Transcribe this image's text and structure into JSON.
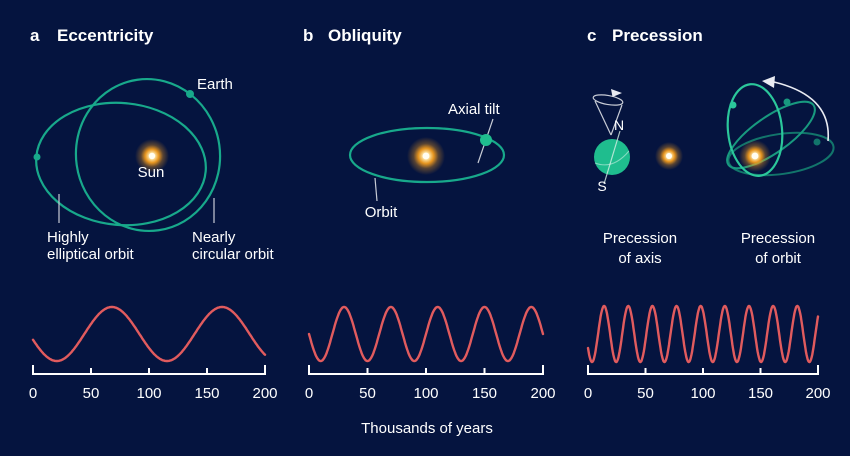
{
  "figure": {
    "palette": {
      "bg": "#05143f",
      "text": "#ffffff",
      "orbit": "#18a98b",
      "orbit-bright": "#2bc79b",
      "orbit-medium": "#18997f",
      "orbit-dark": "#12756b",
      "globe": "#1fbd8e",
      "wave": "#e15b5e",
      "leader": "#c8ccd6",
      "axis": "#ffffff",
      "sun-core": "#ffffff",
      "sun-mid": "#ffe9ad",
      "sun-outer": "#f29b1d"
    }
  },
  "panels": {
    "a": {
      "letter": "a",
      "title": "Eccentricity",
      "labels": {
        "earth": "Earth",
        "sun": "Sun",
        "highly_line1": "Highly",
        "highly_line2": "elliptical orbit",
        "nearly_line1": "Nearly",
        "nearly_line2": "circular orbit"
      }
    },
    "b": {
      "letter": "b",
      "title": "Obliquity",
      "labels": {
        "axial_tilt": "Axial tilt",
        "orbit": "Orbit"
      }
    },
    "c": {
      "letter": "c",
      "title": "Precession",
      "labels": {
        "north": "N",
        "south": "S",
        "axis_caption_line1": "Precession",
        "axis_caption_line2": "of axis",
        "orbit_caption_line1": "Precession",
        "orbit_caption_line2": "of orbit"
      }
    }
  },
  "x_axis_label": "Thousands of years",
  "chart_data": [
    {
      "id": "eccentricity-cycle",
      "type": "line",
      "panel": "a",
      "x_range": [
        0,
        200
      ],
      "x_ticks": [
        0,
        50,
        100,
        150,
        200
      ],
      "x_tick_labels": [
        "0",
        "50",
        "100",
        "150",
        "200"
      ],
      "xlabel": "Thousands of years",
      "period_kyr": 95,
      "peak_at_kyr": 68,
      "approx_cycles_shown": 2,
      "color": "#e15b5e"
    },
    {
      "id": "obliquity-cycle",
      "type": "line",
      "panel": "b",
      "x_range": [
        0,
        200
      ],
      "x_ticks": [
        0,
        50,
        100,
        150,
        200
      ],
      "x_tick_labels": [
        "0",
        "50",
        "100",
        "150",
        "200"
      ],
      "xlabel": "Thousands of years",
      "period_kyr": 40,
      "peak_at_kyr": 30,
      "approx_cycles_shown": 5,
      "color": "#e15b5e"
    },
    {
      "id": "precession-cycle",
      "type": "line",
      "panel": "c",
      "x_range": [
        0,
        200
      ],
      "x_ticks": [
        0,
        50,
        100,
        150,
        200
      ],
      "x_tick_labels": [
        "0",
        "50",
        "100",
        "150",
        "200"
      ],
      "xlabel": "Thousands of years",
      "period_kyr": 21,
      "peak_at_kyr": 14,
      "approx_cycles_shown": 9.5,
      "color": "#e15b5e"
    }
  ]
}
